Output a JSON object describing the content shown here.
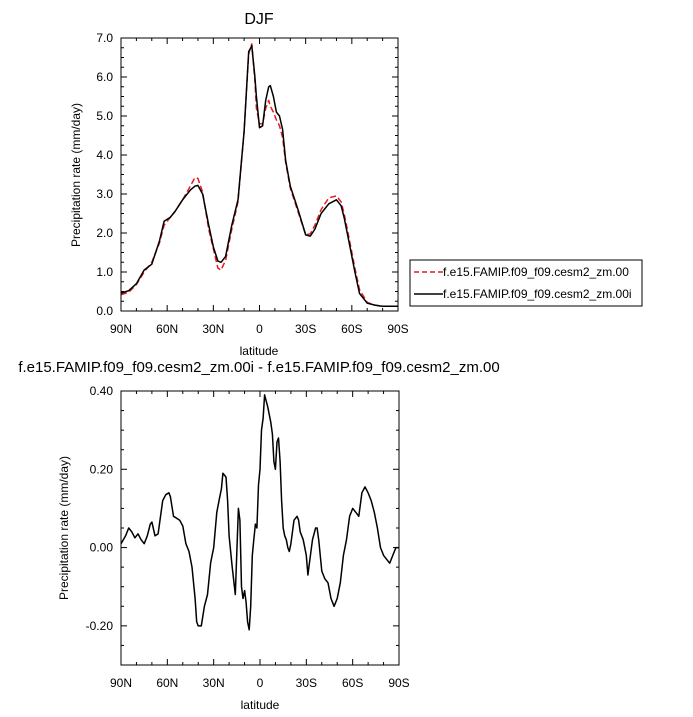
{
  "chart_data": [
    {
      "type": "line",
      "title": "DJF",
      "xlabel": "latitude",
      "ylabel": "Precipitation rate (mm/day)",
      "xlim": [
        90,
        -90
      ],
      "ylim": [
        0,
        7
      ],
      "xticks": [
        90,
        60,
        30,
        0,
        -30,
        -60,
        -90
      ],
      "xtick_labels": [
        "90N",
        "60N",
        "30N",
        "0",
        "30S",
        "60S",
        "90S"
      ],
      "yticks": [
        0,
        1,
        2,
        3,
        4,
        5,
        6,
        7
      ],
      "ytick_labels": [
        "0.0",
        "1.0",
        "2.0",
        "3.0",
        "4.0",
        "5.0",
        "6.0",
        "7.0"
      ],
      "legend_position": "right-outside",
      "series": [
        {
          "name": "f.e15.FAMIP.f09_f09.cesm2_zm.00",
          "color": "#e8191e",
          "dash": "dashed",
          "x": [
            90,
            85,
            80,
            75,
            70,
            65,
            62,
            58,
            55,
            50,
            45,
            42,
            40,
            37,
            33,
            30,
            27,
            25,
            22,
            18,
            14,
            10,
            7,
            5,
            3,
            2,
            0,
            -2,
            -4,
            -6,
            -7,
            -9,
            -11,
            -13,
            -15,
            -17,
            -20,
            -25,
            -30,
            -33,
            -36,
            -40,
            -45,
            -50,
            -53,
            -55,
            -58,
            -62,
            -65,
            -70,
            -75,
            -80,
            -85,
            -90
          ],
          "y": [
            0.42,
            0.48,
            0.68,
            1.0,
            1.25,
            1.75,
            2.2,
            2.4,
            2.55,
            2.85,
            3.2,
            3.42,
            3.4,
            3.05,
            2.1,
            1.6,
            1.1,
            1.05,
            1.3,
            2.1,
            2.8,
            4.6,
            6.6,
            6.85,
            5.9,
            5.2,
            4.8,
            4.8,
            5.2,
            5.4,
            5.25,
            5.1,
            4.9,
            4.75,
            4.45,
            3.8,
            3.15,
            2.55,
            1.95,
            1.98,
            2.2,
            2.6,
            2.9,
            2.95,
            2.8,
            2.5,
            1.9,
            1.1,
            0.55,
            0.22,
            0.15,
            0.12,
            0.12,
            0.12
          ]
        },
        {
          "name": "f.e15.FAMIP.f09_f09.cesm2_zm.00i",
          "color": "#000000",
          "dash": "solid",
          "x": [
            90,
            85,
            80,
            75,
            70,
            65,
            62,
            58,
            55,
            50,
            45,
            42,
            40,
            37,
            33,
            30,
            27,
            25,
            22,
            18,
            14,
            10,
            7,
            5,
            3,
            2,
            0,
            -2,
            -4,
            -6,
            -7,
            -9,
            -11,
            -13,
            -15,
            -17,
            -20,
            -25,
            -30,
            -33,
            -36,
            -40,
            -45,
            -50,
            -53,
            -55,
            -58,
            -62,
            -65,
            -70,
            -75,
            -80,
            -85,
            -90
          ],
          "y": [
            0.46,
            0.52,
            0.7,
            1.05,
            1.2,
            1.8,
            2.3,
            2.4,
            2.55,
            2.85,
            3.1,
            3.2,
            3.22,
            3.0,
            2.2,
            1.65,
            1.28,
            1.25,
            1.4,
            2.2,
            2.85,
            4.6,
            6.65,
            6.8,
            6.0,
            5.5,
            4.7,
            4.75,
            5.4,
            5.75,
            5.78,
            5.5,
            5.1,
            5.0,
            4.65,
            3.85,
            3.2,
            2.6,
            1.95,
            1.92,
            2.1,
            2.5,
            2.75,
            2.85,
            2.7,
            2.4,
            1.8,
            1.0,
            0.45,
            0.2,
            0.15,
            0.12,
            0.12,
            0.12
          ]
        }
      ]
    },
    {
      "type": "line",
      "title": "f.e15.FAMIP.f09_f09.cesm2_zm.00i - f.e15.FAMIP.f09_f09.cesm2_zm.00",
      "xlabel": "latitude",
      "ylabel": "Precipitation rate (mm/day)",
      "xlim": [
        90,
        -90
      ],
      "ylim": [
        -0.3,
        0.4
      ],
      "xticks": [
        90,
        60,
        30,
        0,
        -30,
        -60,
        -90
      ],
      "xtick_labels": [
        "90N",
        "60N",
        "30N",
        "0",
        "30S",
        "60S",
        "90S"
      ],
      "yticks": [
        -0.2,
        0.0,
        0.2,
        0.4
      ],
      "ytick_labels": [
        "-0.20",
        "0.00",
        "0.20",
        "0.40"
      ],
      "series": [
        {
          "color": "#000000",
          "x": [
            90,
            87,
            85,
            83,
            81,
            79,
            77,
            75,
            73,
            71,
            70,
            68,
            66,
            63,
            61,
            59,
            58,
            56,
            54,
            52,
            50,
            48,
            46,
            44,
            42,
            41,
            40,
            38,
            36,
            34,
            32,
            31,
            30,
            28,
            26,
            25,
            24,
            22,
            21,
            20,
            18,
            16,
            14,
            13,
            12,
            11,
            10,
            9,
            8,
            7,
            6,
            5,
            4,
            3,
            2,
            1,
            0,
            -1,
            -2,
            -3,
            -5,
            -7,
            -8,
            -9,
            -10,
            -11,
            -12,
            -13,
            -14,
            -15,
            -16,
            -17,
            -18,
            -19,
            -20,
            -22,
            -24,
            -25,
            -26,
            -28,
            -30,
            -31,
            -32,
            -34,
            -36,
            -37,
            -38,
            -40,
            -42,
            -44,
            -46,
            -48,
            -50,
            -52,
            -54,
            -56,
            -58,
            -60,
            -62,
            -64,
            -66,
            -68,
            -70,
            -72,
            -74,
            -76,
            -78,
            -80,
            -82,
            -84,
            -86,
            -88,
            -90
          ],
          "y": [
            0.01,
            0.03,
            0.05,
            0.04,
            0.025,
            0.035,
            0.02,
            0.01,
            0.03,
            0.06,
            0.065,
            0.03,
            0.035,
            0.12,
            0.135,
            0.14,
            0.13,
            0.08,
            0.075,
            0.07,
            0.055,
            0.01,
            -0.01,
            -0.05,
            -0.13,
            -0.19,
            -0.2,
            -0.2,
            -0.15,
            -0.12,
            -0.04,
            -0.02,
            0.0,
            0.09,
            0.13,
            0.15,
            0.19,
            0.18,
            0.12,
            0.03,
            -0.05,
            -0.12,
            0.1,
            0.07,
            -0.1,
            -0.13,
            -0.11,
            -0.14,
            -0.19,
            -0.21,
            -0.15,
            -0.02,
            0.02,
            0.06,
            0.05,
            0.16,
            0.2,
            0.3,
            0.33,
            0.39,
            0.36,
            0.32,
            0.29,
            0.22,
            0.2,
            0.27,
            0.28,
            0.22,
            0.12,
            0.05,
            0.03,
            0.02,
            0.0,
            -0.01,
            0.01,
            0.07,
            0.08,
            0.07,
            0.04,
            0.02,
            -0.02,
            -0.07,
            -0.04,
            0.02,
            0.05,
            0.05,
            0.02,
            -0.06,
            -0.08,
            -0.09,
            -0.13,
            -0.15,
            -0.13,
            -0.09,
            -0.02,
            0.02,
            0.08,
            0.1,
            0.09,
            0.08,
            0.14,
            0.155,
            0.14,
            0.12,
            0.09,
            0.05,
            0.0,
            -0.02,
            -0.03,
            -0.04,
            -0.02,
            0.0,
            0.0
          ]
        }
      ]
    }
  ]
}
